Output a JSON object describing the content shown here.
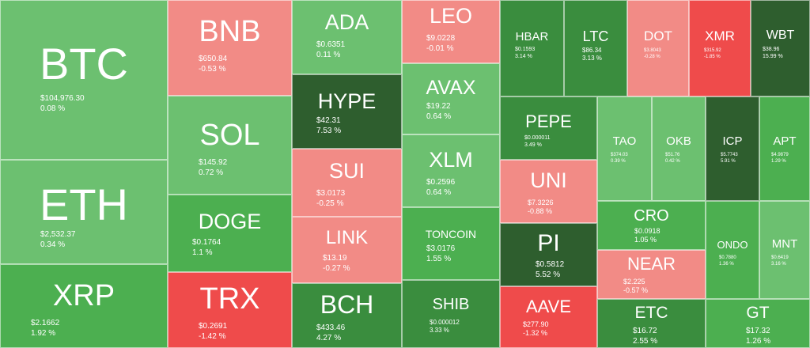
{
  "colors": {
    "strong_up": "#2e5e2e",
    "up_big": "#3a8d3e",
    "up_mid": "#4caf50",
    "up_small": "#6cc070",
    "down_small": "#f28b86",
    "down_big": "#ef4b4b"
  },
  "tiles": [
    {
      "symbol": "BTC",
      "price": "$104,976.30",
      "change": "0.08 %"
    },
    {
      "symbol": "ETH",
      "price": "$2,532.37",
      "change": "0.34 %"
    },
    {
      "symbol": "XRP",
      "price": "$2.1662",
      "change": "1.92 %"
    },
    {
      "symbol": "BNB",
      "price": "$650.84",
      "change": "-0.53 %"
    },
    {
      "symbol": "SOL",
      "price": "$145.92",
      "change": "0.72 %"
    },
    {
      "symbol": "DOGE",
      "price": "$0.1764",
      "change": "1.1 %"
    },
    {
      "symbol": "TRX",
      "price": "$0.2691",
      "change": "-1.42 %"
    },
    {
      "symbol": "ADA",
      "price": "$0.6351",
      "change": "0.11 %"
    },
    {
      "symbol": "HYPE",
      "price": "$42.31",
      "change": "7.53 %"
    },
    {
      "symbol": "SUI",
      "price": "$3.0173",
      "change": "-0.25 %"
    },
    {
      "symbol": "LINK",
      "price": "$13.19",
      "change": "-0.27 %"
    },
    {
      "symbol": "BCH",
      "price": "$433.46",
      "change": "4.27 %"
    },
    {
      "symbol": "LEO",
      "price": "$9.0228",
      "change": "-0.01 %"
    },
    {
      "symbol": "AVAX",
      "price": "$19.22",
      "change": "0.64 %"
    },
    {
      "symbol": "XLM",
      "price": "$0.2596",
      "change": "0.64 %"
    },
    {
      "symbol": "TONCOIN",
      "price": "$3.0176",
      "change": "1.55 %"
    },
    {
      "symbol": "SHIB",
      "price": "$0.000012",
      "change": "3.33 %"
    },
    {
      "symbol": "HBAR",
      "price": "$0.1593",
      "change": "3.14 %"
    },
    {
      "symbol": "LTC",
      "price": "$86.34",
      "change": "3.13 %"
    },
    {
      "symbol": "DOT",
      "price": "$3.8043",
      "change": "-0.28 %"
    },
    {
      "symbol": "XMR",
      "price": "$315.92",
      "change": "-1.85 %"
    },
    {
      "symbol": "WBT",
      "price": "$38.96",
      "change": "15.99 %"
    },
    {
      "symbol": "PEPE",
      "price": "$0.000011",
      "change": "3.49 %"
    },
    {
      "symbol": "TAO",
      "price": "$374.03",
      "change": "0.39 %"
    },
    {
      "symbol": "OKB",
      "price": "$51.76",
      "change": "0.42 %"
    },
    {
      "symbol": "ICP",
      "price": "$5.7743",
      "change": "5.91 %"
    },
    {
      "symbol": "APT",
      "price": "$4.9879",
      "change": "1.29 %"
    },
    {
      "symbol": "UNI",
      "price": "$7.3226",
      "change": "-0.88 %"
    },
    {
      "symbol": "CRO",
      "price": "$0.0918",
      "change": "1.05 %"
    },
    {
      "symbol": "ONDO",
      "price": "$0.7880",
      "change": "1.36 %"
    },
    {
      "symbol": "MNT",
      "price": "$0.6419",
      "change": "3.16 %"
    },
    {
      "symbol": "PI",
      "price": "$0.5812",
      "change": "5.52 %"
    },
    {
      "symbol": "NEAR",
      "price": "$2.225",
      "change": "-0.57 %"
    },
    {
      "symbol": "AAVE",
      "price": "$277.90",
      "change": "-1.32 %"
    },
    {
      "symbol": "ETC",
      "price": "$16.72",
      "change": "2.55 %"
    },
    {
      "symbol": "GT",
      "price": "$17.32",
      "change": "1.26 %"
    }
  ]
}
